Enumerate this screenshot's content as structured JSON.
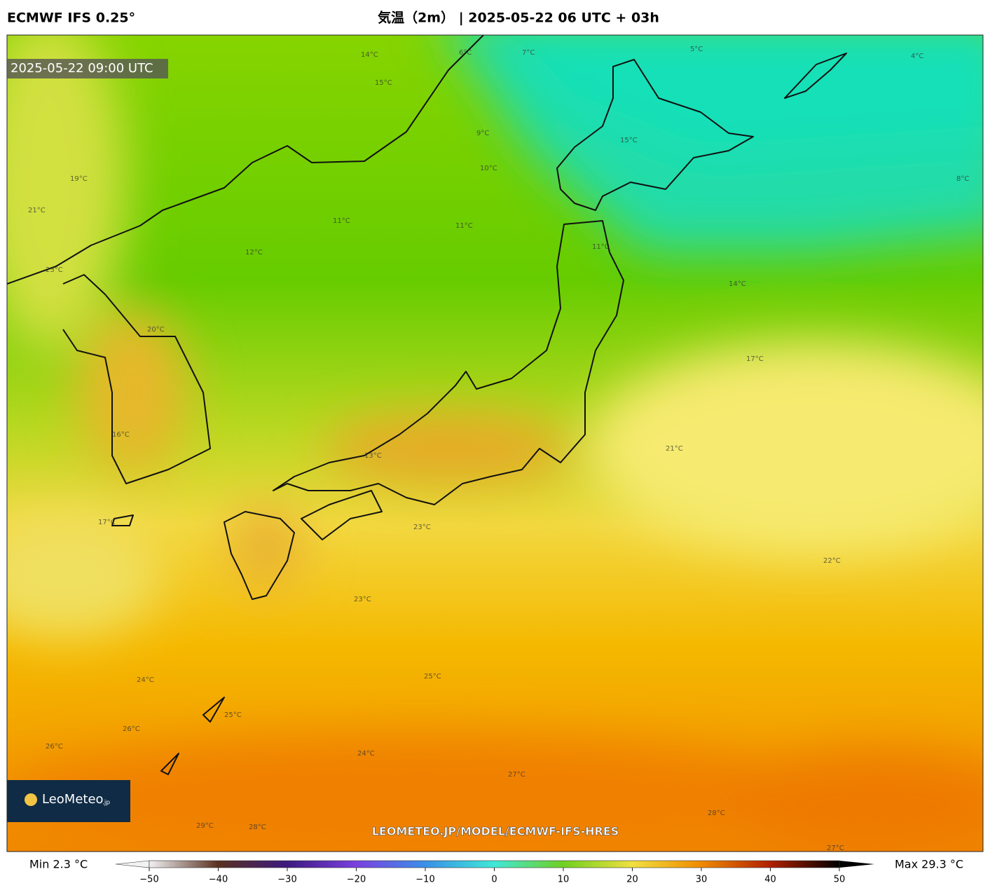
{
  "header": {
    "model": "ECMWF IFS 0.25°",
    "title": "気温（2m） | 2025-05-22 06 UTC + 03h"
  },
  "map": {
    "valid_time": "2025-05-22 09:00 UTC",
    "watermark": "LEOMETEO.JP/MODEL/ECMWF-IFS-HRES",
    "logo": {
      "name": "LeoMeteo",
      "suffix": ".jp"
    },
    "contour_labels": [
      "14°C",
      "15°C",
      "19°C",
      "6°C",
      "7°C",
      "5°C",
      "4°C",
      "9°C",
      "10°C",
      "11°C",
      "11°C",
      "12°C",
      "21°C",
      "23°C",
      "20°C",
      "11°C",
      "14°C",
      "16°C",
      "17°C",
      "13°C",
      "15°C",
      "17°C",
      "21°C",
      "23°C",
      "22°C",
      "23°C",
      "24°C",
      "25°C",
      "26°C",
      "24°C",
      "25°C",
      "27°C",
      "26°C",
      "28°C",
      "29°C",
      "28°C",
      "27°C",
      "8°C"
    ]
  },
  "colorbar": {
    "min_label": "Min 2.3 °C",
    "max_label": "Max 29.3 °C",
    "lim": [
      -50,
      50
    ],
    "ticks": [
      {
        "value": -50,
        "label": "−50"
      },
      {
        "value": -40,
        "label": "−40"
      },
      {
        "value": -30,
        "label": "−30"
      },
      {
        "value": -20,
        "label": "−20"
      },
      {
        "value": -10,
        "label": "−10"
      },
      0,
      10,
      20,
      30,
      40,
      50
    ],
    "colors": [
      "#f2f2f2",
      "#5a3020",
      "#3c1a80",
      "#7a40e0",
      "#3a90e8",
      "#40e8d8",
      "#70d020",
      "#f0e040",
      "#f08a00",
      "#b02000",
      "#000000"
    ]
  }
}
